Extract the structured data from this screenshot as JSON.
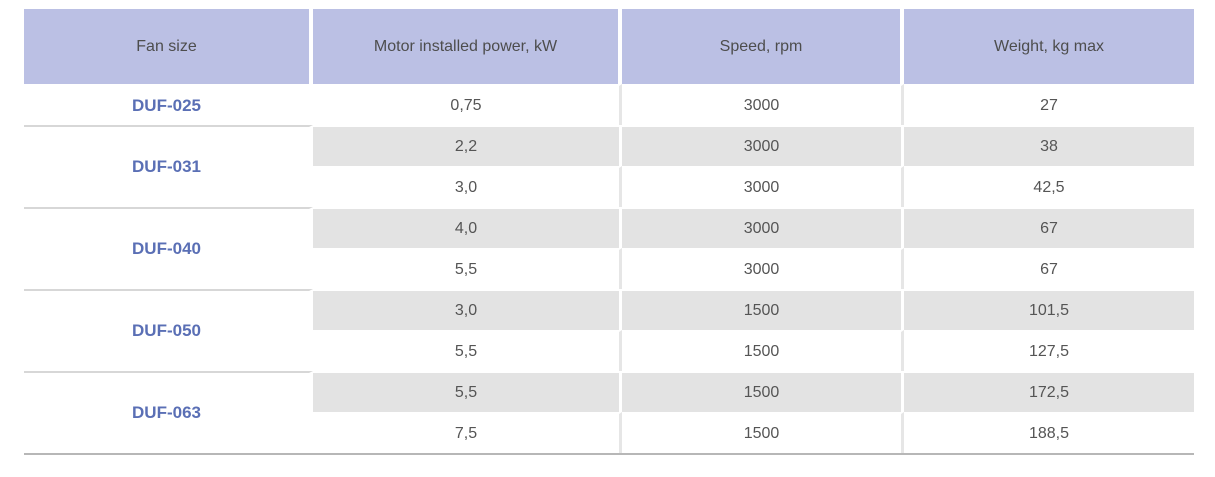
{
  "headers": {
    "fan_size": "Fan size",
    "motor_power": "Motor installed power, kW",
    "speed": "Speed, rpm",
    "weight": "Weight, kg max"
  },
  "groups": [
    {
      "fan_size": "DUF-025",
      "rows": [
        {
          "power": "0,75",
          "speed": "3000",
          "weight": "27"
        }
      ]
    },
    {
      "fan_size": "DUF-031",
      "rows": [
        {
          "power": "2,2",
          "speed": "3000",
          "weight": "38"
        },
        {
          "power": "3,0",
          "speed": "3000",
          "weight": "42,5"
        }
      ]
    },
    {
      "fan_size": "DUF-040",
      "rows": [
        {
          "power": "4,0",
          "speed": "3000",
          "weight": "67"
        },
        {
          "power": "5,5",
          "speed": "3000",
          "weight": "67"
        }
      ]
    },
    {
      "fan_size": "DUF-050",
      "rows": [
        {
          "power": "3,0",
          "speed": "1500",
          "weight": "101,5"
        },
        {
          "power": "5,5",
          "speed": "1500",
          "weight": "127,5"
        }
      ]
    },
    {
      "fan_size": "DUF-063",
      "rows": [
        {
          "power": "5,5",
          "speed": "1500",
          "weight": "172,5"
        },
        {
          "power": "7,5",
          "speed": "1500",
          "weight": "188,5"
        }
      ]
    }
  ],
  "colors": {
    "header_bg": "#bbc0e4",
    "fan_size_text": "#5a6fb5",
    "shaded_row_bg": "#e3e3e3"
  }
}
